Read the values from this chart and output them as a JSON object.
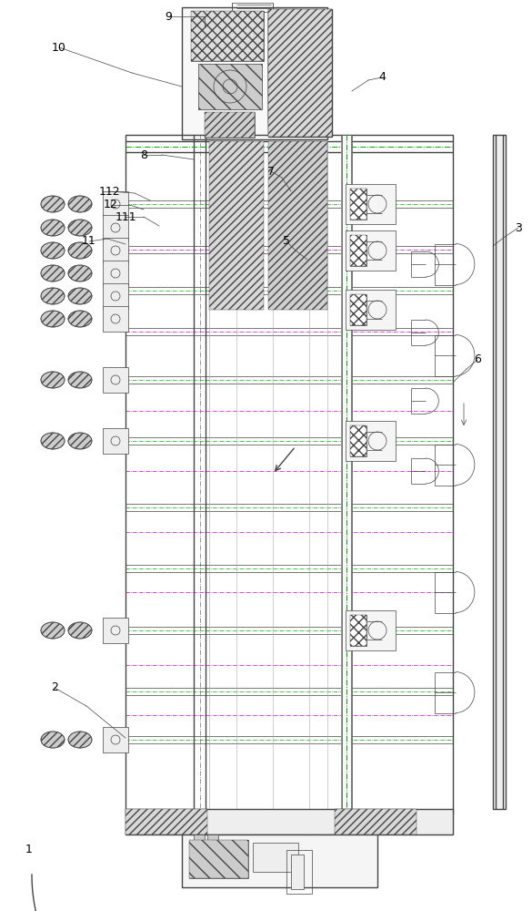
{
  "bg_color": "#ffffff",
  "line_color": "#444444",
  "thin_line": 0.5,
  "medium_line": 1.0,
  "thick_line": 1.5,
  "green_color": "#00aa00",
  "magenta_color": "#cc00cc",
  "label_color": "#000000",
  "label_fontsize": 9
}
